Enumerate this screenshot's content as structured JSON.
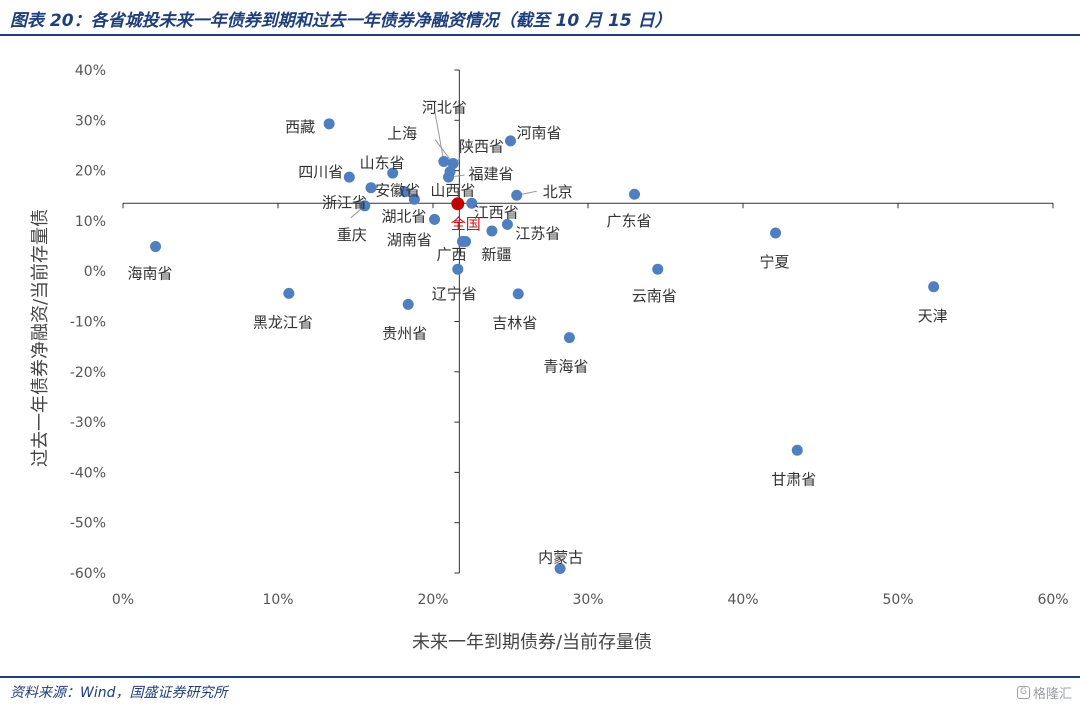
{
  "header": {
    "title": "图表 20：各省城投未来一年债券到期和过去一年债券净融资情况（截至 10 月 15 日）"
  },
  "footer": {
    "source": "资料来源：Wind，国盛证券研究所",
    "watermark": "格隆汇"
  },
  "colors": {
    "point": "#4f7fbf",
    "national": "#c00000",
    "brand": "#1f3f7a",
    "leader": "#999999"
  },
  "chart_data": {
    "type": "scatter",
    "xlabel": "未来一年到期债券/当前存量债",
    "ylabel": "过去一年债券净融资/当前存量债",
    "xlim": [
      0,
      0.6
    ],
    "ylim": [
      -0.6,
      0.4
    ],
    "x_ticks": [
      {
        "value": 0,
        "label": "0%"
      },
      {
        "value": 0.1,
        "label": "10%"
      },
      {
        "value": 0.2,
        "label": "20%"
      },
      {
        "value": 0.3,
        "label": "30%"
      },
      {
        "value": 0.4,
        "label": "40%"
      },
      {
        "value": 0.5,
        "label": "50%"
      },
      {
        "value": 0.6,
        "label": "60%"
      }
    ],
    "y_ticks": [
      {
        "value": 0.4,
        "label": "40%"
      },
      {
        "value": 0.3,
        "label": "30%"
      },
      {
        "value": 0.2,
        "label": "20%"
      },
      {
        "value": 0.1,
        "label": "10%"
      },
      {
        "value": 0,
        "label": "0%"
      },
      {
        "value": -0.1,
        "label": "-10%"
      },
      {
        "value": -0.2,
        "label": "-20%"
      },
      {
        "value": -0.3,
        "label": "-30%"
      },
      {
        "value": -0.4,
        "label": "-40%"
      },
      {
        "value": -0.5,
        "label": "-50%"
      },
      {
        "value": -0.6,
        "label": "-60%"
      }
    ],
    "axis_cross": {
      "x": 0.217,
      "y": 0.135
    },
    "points": [
      {
        "name": "西藏",
        "x": 0.133,
        "y": 0.293,
        "anchor": "end",
        "dx": -14,
        "dy": 8
      },
      {
        "name": "河北省",
        "x": 0.207,
        "y": 0.218,
        "anchor": "start",
        "dx": -22,
        "dy": -49,
        "leader": [
          -9,
          -50
        ]
      },
      {
        "name": "上海",
        "x": 0.213,
        "y": 0.214,
        "anchor": "end",
        "dx": -36,
        "dy": -25,
        "leader": [
          -18,
          -24
        ]
      },
      {
        "name": "河南省",
        "x": 0.25,
        "y": 0.259,
        "anchor": "start",
        "dx": 6,
        "dy": -3
      },
      {
        "name": "陕西省",
        "x": 0.211,
        "y": 0.198,
        "anchor": "start",
        "dx": 9,
        "dy": -20,
        "leader": [
          10,
          -14
        ]
      },
      {
        "name": "四川省",
        "x": 0.146,
        "y": 0.187,
        "anchor": "end",
        "dx": -6,
        "dy": 0
      },
      {
        "name": "山东省",
        "x": 0.174,
        "y": 0.195,
        "anchor": "end",
        "dx": 12,
        "dy": -5
      },
      {
        "name": "福建省",
        "x": 0.21,
        "y": 0.187,
        "anchor": "start",
        "dx": 20,
        "dy": 2,
        "leader": [
          16,
          -2
        ]
      },
      {
        "name": "安徽省",
        "x": 0.182,
        "y": 0.158,
        "anchor": "start",
        "dx": -30,
        "dy": 4
      },
      {
        "name": "山西省",
        "x": 0.188,
        "y": 0.143,
        "anchor": "start",
        "dx": 16,
        "dy": -4
      },
      {
        "name": "浙江省",
        "x": 0.16,
        "y": 0.166,
        "anchor": "end",
        "dx": -4,
        "dy": 20
      },
      {
        "name": "北京",
        "x": 0.254,
        "y": 0.151,
        "anchor": "start",
        "dx": 26,
        "dy": 2,
        "leader": [
          20,
          -4
        ]
      },
      {
        "name": "广东省",
        "x": 0.33,
        "y": 0.153,
        "anchor": "start",
        "dx": -28,
        "dy": 32
      },
      {
        "name": "重庆",
        "x": 0.156,
        "y": 0.13,
        "anchor": "end",
        "dx": 2,
        "dy": 34,
        "leader": [
          -14,
          12
        ]
      },
      {
        "name": "湖北省",
        "x": 0.201,
        "y": 0.103,
        "anchor": "end",
        "dx": -8,
        "dy": 2
      },
      {
        "name": "江西省",
        "x": 0.225,
        "y": 0.135,
        "anchor": "start",
        "dx": 2,
        "dy": 14
      },
      {
        "name": "江苏省",
        "x": 0.248,
        "y": 0.093,
        "anchor": "start",
        "dx": 8,
        "dy": 14
      },
      {
        "name": "湖南省",
        "x": 0.238,
        "y": 0.08,
        "anchor": "end",
        "dx": -60,
        "dy": 14
      },
      {
        "name": "广西",
        "x": 0.219,
        "y": 0.059,
        "anchor": "start",
        "dx": -26,
        "dy": 18
      },
      {
        "name": "新疆",
        "x": 0.221,
        "y": 0.059,
        "anchor": "start",
        "dx": 16,
        "dy": 18
      },
      {
        "name": "宁夏",
        "x": 0.421,
        "y": 0.076,
        "anchor": "start",
        "dx": -16,
        "dy": 34
      },
      {
        "name": "海南省",
        "x": 0.021,
        "y": 0.049,
        "anchor": "start",
        "dx": -28,
        "dy": 32
      },
      {
        "name": "辽宁省",
        "x": 0.216,
        "y": 0.004,
        "anchor": "start",
        "dx": -26,
        "dy": 30
      },
      {
        "name": "云南省",
        "x": 0.345,
        "y": 0.004,
        "anchor": "start",
        "dx": -26,
        "dy": 32
      },
      {
        "name": "天津",
        "x": 0.523,
        "y": -0.031,
        "anchor": "start",
        "dx": -16,
        "dy": 34
      },
      {
        "name": "黑龙江省",
        "x": 0.107,
        "y": -0.044,
        "anchor": "start",
        "dx": -36,
        "dy": 34
      },
      {
        "name": "吉林省",
        "x": 0.255,
        "y": -0.045,
        "anchor": "start",
        "dx": -26,
        "dy": 34
      },
      {
        "name": "贵州省",
        "x": 0.184,
        "y": -0.066,
        "anchor": "start",
        "dx": -26,
        "dy": 34
      },
      {
        "name": "青海省",
        "x": 0.288,
        "y": -0.132,
        "anchor": "start",
        "dx": -26,
        "dy": 34
      },
      {
        "name": "甘肃省",
        "x": 0.435,
        "y": -0.356,
        "anchor": "start",
        "dx": -26,
        "dy": 34
      },
      {
        "name": "内蒙古",
        "x": 0.282,
        "y": -0.591,
        "anchor": "start",
        "dx": -22,
        "dy": -6
      }
    ],
    "national": {
      "name": "全国",
      "x": 0.216,
      "y": 0.134
    }
  }
}
